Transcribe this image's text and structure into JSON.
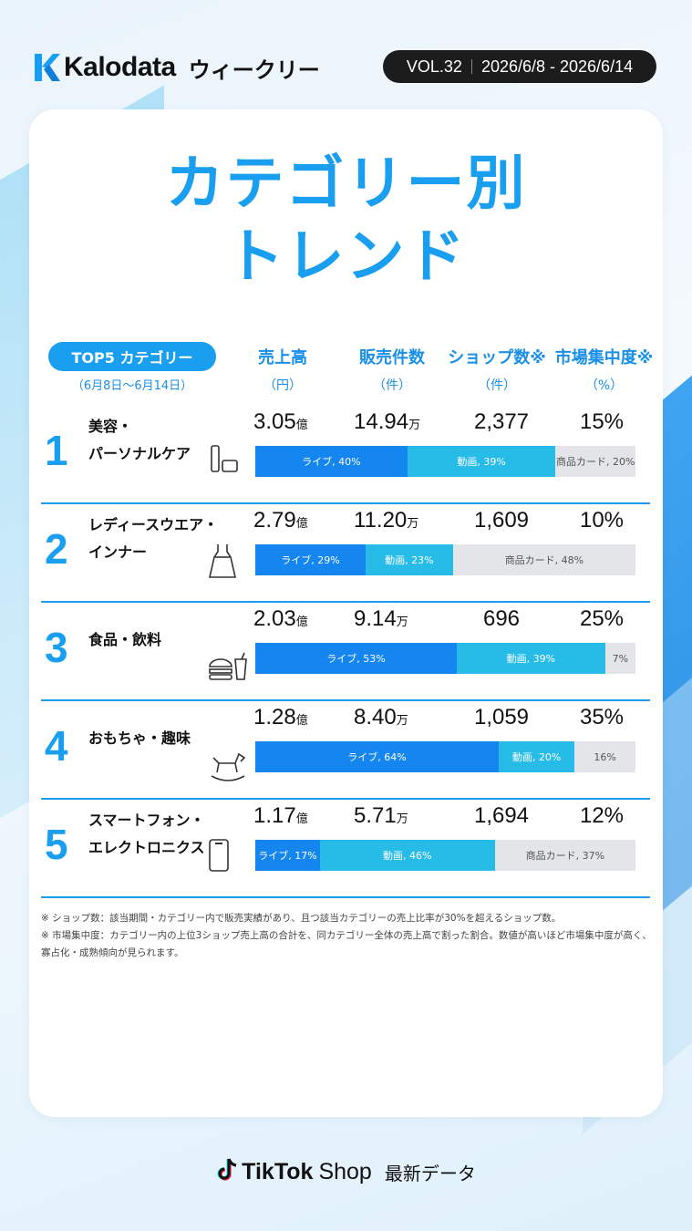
{
  "header": {
    "brand": "Kalodata",
    "weekly": "ウィークリー",
    "vol": "VOL.32",
    "date_range": "2026/6/8 - 2026/6/14"
  },
  "title_line1": "カテゴリー別",
  "title_line2": "トレンド",
  "table_header": {
    "top5": "TOP5 カテゴリー",
    "period": "（6月8日～6月14日）",
    "sales": "売上高",
    "sales_unit": "（円）",
    "units": "販売件数",
    "units_unit": "（件）",
    "shops": "ショップ数※",
    "shops_unit": "（件）",
    "concentration": "市場集中度※",
    "concentration_unit": "（%）"
  },
  "rows": [
    {
      "rank": "1",
      "cat1": "美容・",
      "cat2": "パーソナルケア",
      "icon": "cosmetics-icon",
      "sales": "3.05",
      "sales_suffix": "億",
      "units": "14.94",
      "units_suffix": "万",
      "shops": "2,377",
      "concentration": "15%",
      "bar": {
        "live": 40,
        "video": 39,
        "card": 20,
        "live_label": "ライブ, 40%",
        "video_label": "動画, 39%",
        "card_label": "商品カード, 20%"
      }
    },
    {
      "rank": "2",
      "cat1": "レディースウエア・",
      "cat2": "インナー",
      "icon": "dress-icon",
      "sales": "2.79",
      "sales_suffix": "億",
      "units": "11.20",
      "units_suffix": "万",
      "shops": "1,609",
      "concentration": "10%",
      "bar": {
        "live": 29,
        "video": 23,
        "card": 48,
        "live_label": "ライブ, 29%",
        "video_label": "動画, 23%",
        "card_label": "商品カード, 48%"
      }
    },
    {
      "rank": "3",
      "cat1": "食品・飲料",
      "cat2": "",
      "icon": "burger-drink-icon",
      "sales": "2.03",
      "sales_suffix": "億",
      "units": "9.14",
      "units_suffix": "万",
      "shops": "696",
      "concentration": "25%",
      "bar": {
        "live": 53,
        "video": 39,
        "card": 7,
        "live_label": "ライブ, 53%",
        "video_label": "動画, 39%",
        "card_label": "7%"
      }
    },
    {
      "rank": "4",
      "cat1": "おもちゃ・趣味",
      "cat2": "",
      "icon": "rocking-horse-icon",
      "sales": "1.28",
      "sales_suffix": "億",
      "units": "8.40",
      "units_suffix": "万",
      "shops": "1,059",
      "concentration": "35%",
      "bar": {
        "live": 64,
        "video": 20,
        "card": 16,
        "live_label": "ライブ, 64%",
        "video_label": "動画, 20%",
        "card_label": "16%"
      }
    },
    {
      "rank": "5",
      "cat1": "スマートフォン・",
      "cat2": "エレクトロニクス",
      "icon": "smartphone-icon",
      "sales": "1.17",
      "sales_suffix": "億",
      "units": "5.71",
      "units_suffix": "万",
      "shops": "1,694",
      "concentration": "12%",
      "bar": {
        "live": 17,
        "video": 46,
        "card": 37,
        "live_label": "ライブ, 17%",
        "video_label": "動画, 46%",
        "card_label": "商品カード, 37%"
      }
    }
  ],
  "notes": [
    "※ ショップ数：該当期間・カテゴリー内で販売実績があり、且つ該当カテゴリーの売上比率が30%を超えるショップ数。",
    "※ 市場集中度：カテゴリー内の上位3ショップ売上高の合計を、同カテゴリー全体の売上高で割った割合。数値が高いほど市場集中度が高く、寡占化・成熟傾向が見られます。"
  ],
  "footer": {
    "tiktok": "TikTok",
    "shop": "Shop",
    "latest": "最新データ"
  },
  "colors": {
    "accent": "#1a9ff0",
    "live": "#1585f0",
    "video": "#27bbe8",
    "card": "#e4e5e8"
  }
}
